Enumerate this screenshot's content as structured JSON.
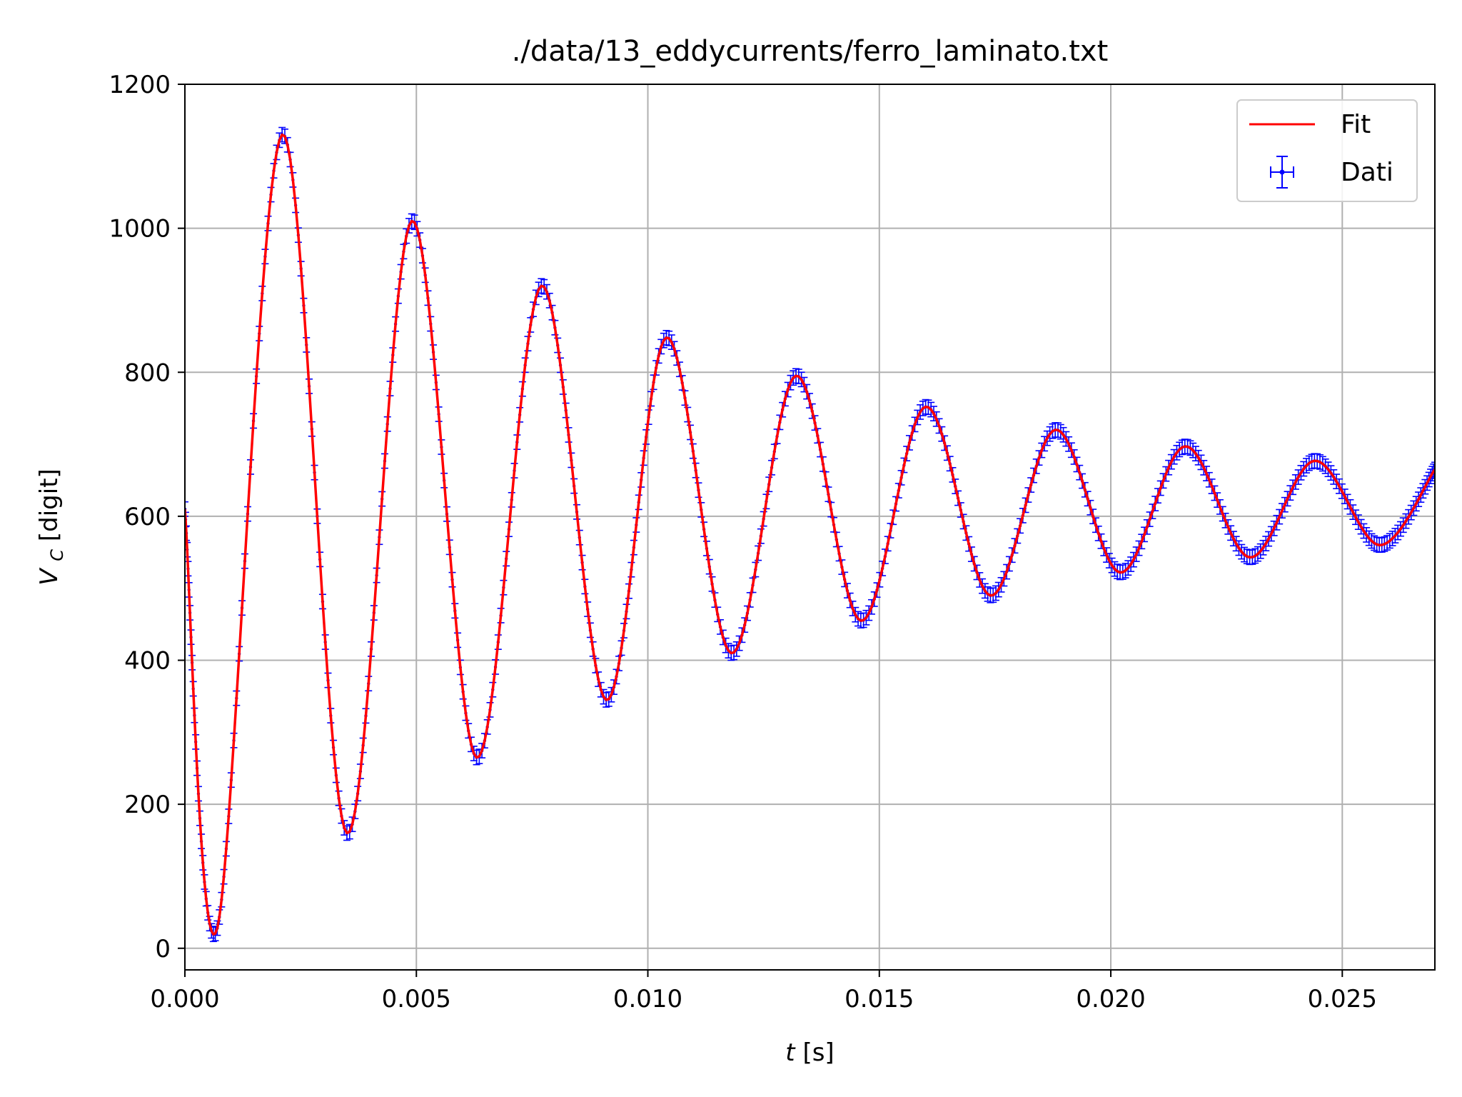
{
  "chart_data": {
    "type": "line",
    "title": "./data/13_eddycurrents/ferro_laminato.txt",
    "xlabel": "t [s]",
    "xlabel_var": "t",
    "xlabel_unit": "[s]",
    "ylabel": "V_C [digit]",
    "ylabel_var": "V",
    "ylabel_sub": "C",
    "ylabel_unit": "[digit]",
    "xlim": [
      0.0,
      0.027
    ],
    "ylim": [
      -30,
      1200
    ],
    "grid": true,
    "legend_position": "top-right",
    "x_ticks": [
      0.0,
      0.005,
      0.01,
      0.015,
      0.02,
      0.025
    ],
    "x_tick_labels": [
      "0.000",
      "0.005",
      "0.010",
      "0.015",
      "0.020",
      "0.025"
    ],
    "y_ticks": [
      0,
      200,
      400,
      600,
      800,
      1000,
      1200
    ],
    "y_tick_labels": [
      "0",
      "200",
      "400",
      "600",
      "800",
      "1000",
      "1200"
    ],
    "series": [
      {
        "name": "Fit",
        "kind": "line",
        "color": "#ff0000",
        "x": [
          0.0,
          0.0007,
          0.0021,
          0.0035,
          0.0049,
          0.0063,
          0.0077,
          0.0091,
          0.0104,
          0.0118,
          0.0132,
          0.0146,
          0.016,
          0.0174,
          0.0188,
          0.0202,
          0.0216,
          0.023,
          0.0244,
          0.0258,
          0.027
        ],
        "y": [
          610,
          28,
          1130,
          160,
          1010,
          265,
          920,
          345,
          848,
          410,
          795,
          455,
          752,
          490,
          720,
          522,
          697,
          543,
          677,
          560,
          665
        ]
      },
      {
        "name": "Dati",
        "kind": "errorbar",
        "color": "#0000ff",
        "x": [
          0.0,
          0.0007,
          0.0021,
          0.0035,
          0.0049,
          0.0063,
          0.0077,
          0.0091,
          0.0104,
          0.0118,
          0.0132,
          0.0146,
          0.016,
          0.0174,
          0.0188,
          0.0202,
          0.0216,
          0.023,
          0.0244,
          0.0258,
          0.027
        ],
        "y": [
          610,
          28,
          1130,
          160,
          1010,
          265,
          920,
          345,
          848,
          410,
          795,
          455,
          752,
          490,
          720,
          522,
          697,
          543,
          677,
          560,
          665
        ],
        "y_err": 10
      }
    ]
  }
}
